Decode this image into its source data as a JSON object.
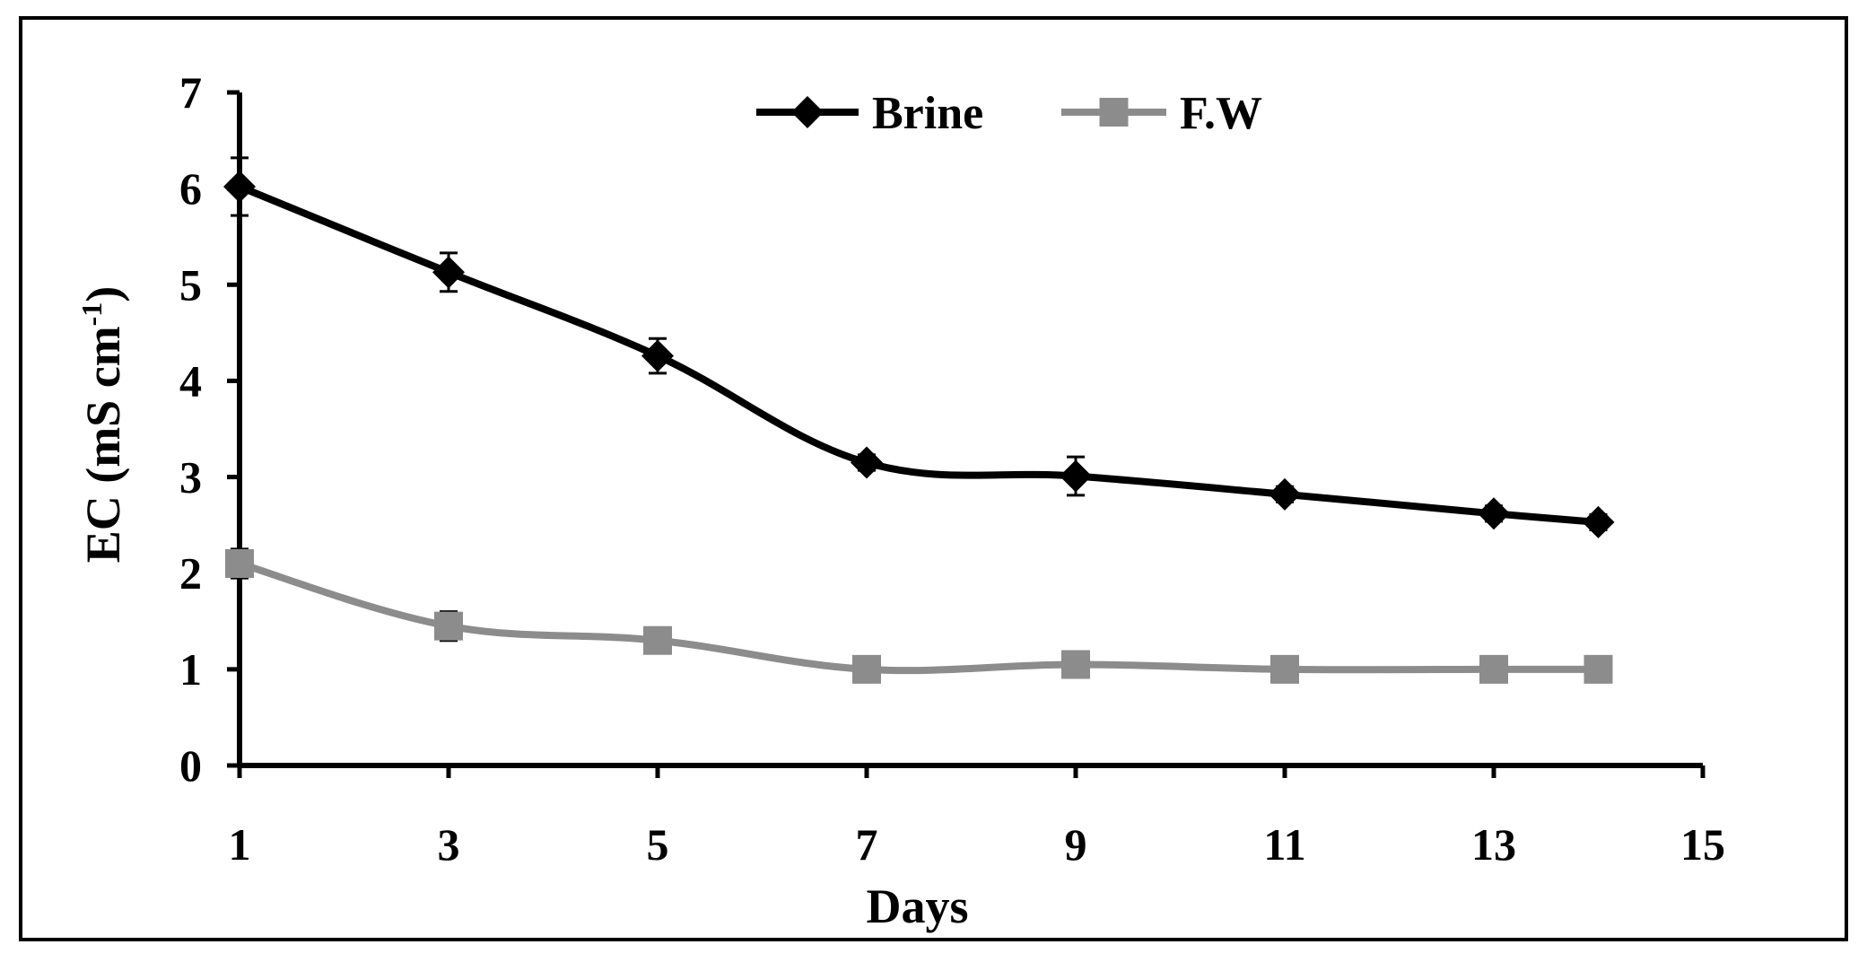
{
  "chart_data": {
    "type": "line",
    "xlabel": "Days",
    "ylabel": "EC (mS cm",
    "ylabel_sup": "-1",
    "ylabel_close": ")",
    "xlim": [
      1,
      15
    ],
    "ylim": [
      0,
      7
    ],
    "x_ticks": [
      1,
      3,
      5,
      7,
      9,
      11,
      13,
      15
    ],
    "y_ticks": [
      0,
      1,
      2,
      3,
      4,
      5,
      6,
      7
    ],
    "grid": false,
    "legend_position": "top-center",
    "series": [
      {
        "name": "Brine",
        "marker": "diamond",
        "color": "#000000",
        "x": [
          1,
          3,
          5,
          7,
          9,
          11,
          13,
          14
        ],
        "y": [
          6.02,
          5.13,
          4.26,
          3.15,
          3.01,
          2.82,
          2.62,
          2.53
        ],
        "error": [
          0.3,
          0.2,
          0.18,
          0.08,
          0.2,
          0.08,
          0.08,
          0.08
        ]
      },
      {
        "name": "F.W",
        "marker": "square",
        "color": "#8c8c8c",
        "x": [
          1,
          3,
          5,
          7,
          9,
          11,
          13,
          14
        ],
        "y": [
          2.1,
          1.45,
          1.3,
          1.0,
          1.05,
          1.0,
          1.0,
          1.0
        ],
        "error": [
          0.15,
          0.15,
          0.05,
          0.05,
          0.05,
          0.03,
          0.03,
          0.03
        ]
      }
    ]
  }
}
